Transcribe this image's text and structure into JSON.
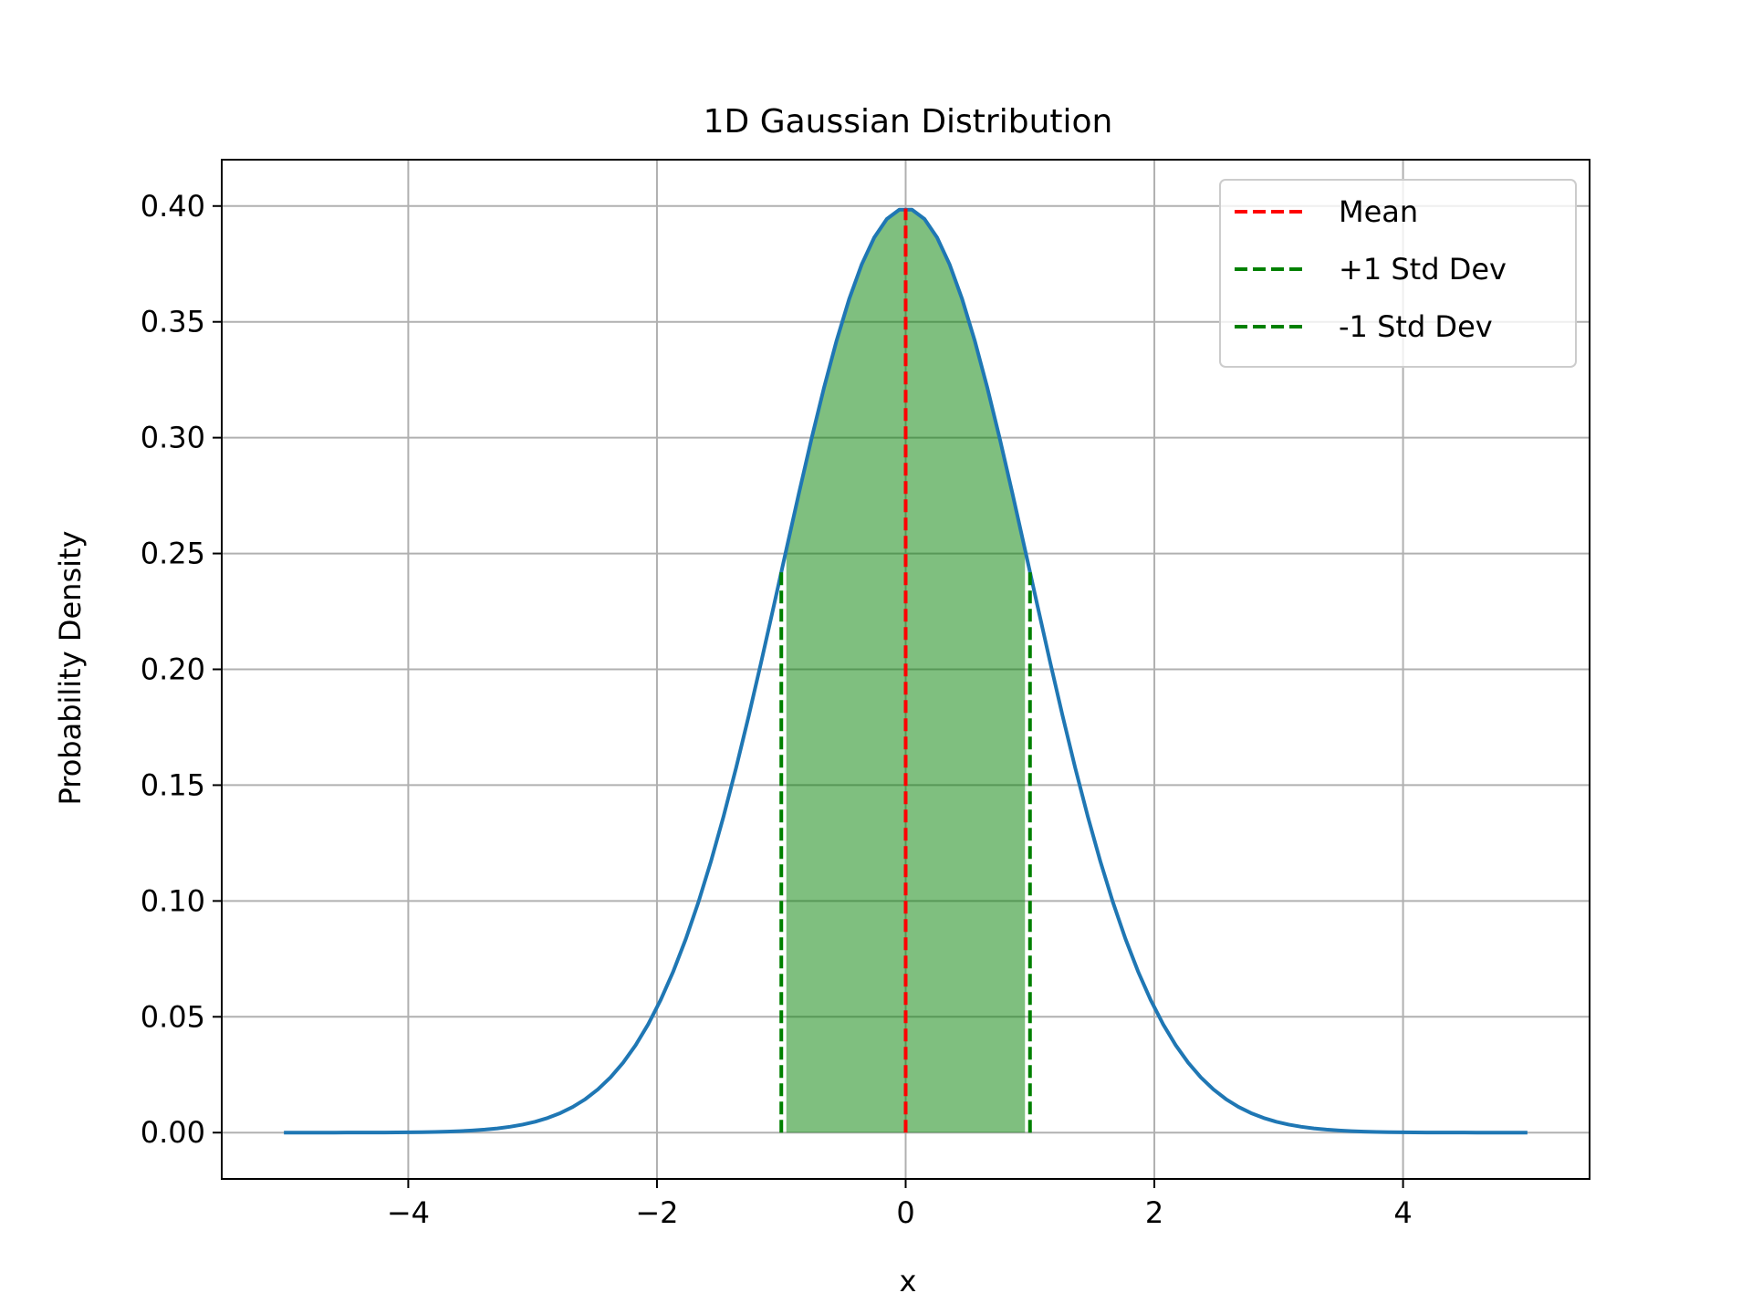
{
  "chart_data": {
    "type": "line",
    "title": "1D Gaussian Distribution",
    "xlabel": "x",
    "ylabel": "Probability Density",
    "xlim": [
      -5.5,
      5.5
    ],
    "ylim": [
      -0.02,
      0.42
    ],
    "xticks": [
      -4,
      -2,
      0,
      2,
      4
    ],
    "xtick_labels": [
      "−4",
      "−2",
      "0",
      "2",
      "4"
    ],
    "yticks": [
      0.0,
      0.05,
      0.1,
      0.15,
      0.2,
      0.25,
      0.3,
      0.35,
      0.4
    ],
    "ytick_labels": [
      "0.00",
      "0.05",
      "0.10",
      "0.15",
      "0.20",
      "0.25",
      "0.30",
      "0.35",
      "0.40"
    ],
    "grid": true,
    "legend_position": "top-right",
    "distribution": {
      "mean": 0,
      "std": 1,
      "x_min": -5,
      "x_max": 5,
      "points": 100
    },
    "series": [
      {
        "kind": "curve",
        "color": "#1f77b4"
      },
      {
        "name": "Mean",
        "kind": "vline",
        "x": 0,
        "color": "#ff0000",
        "dashed": true
      },
      {
        "name": "+1 Std Dev",
        "kind": "vline",
        "x": 1,
        "color": "#008000",
        "dashed": true
      },
      {
        "name": "-1 Std Dev",
        "kind": "vline",
        "x": -1,
        "color": "#008000",
        "dashed": true
      }
    ],
    "shaded_region": {
      "x_from": -1,
      "x_to": 1,
      "color": "#008000",
      "alpha": 0.5
    }
  }
}
